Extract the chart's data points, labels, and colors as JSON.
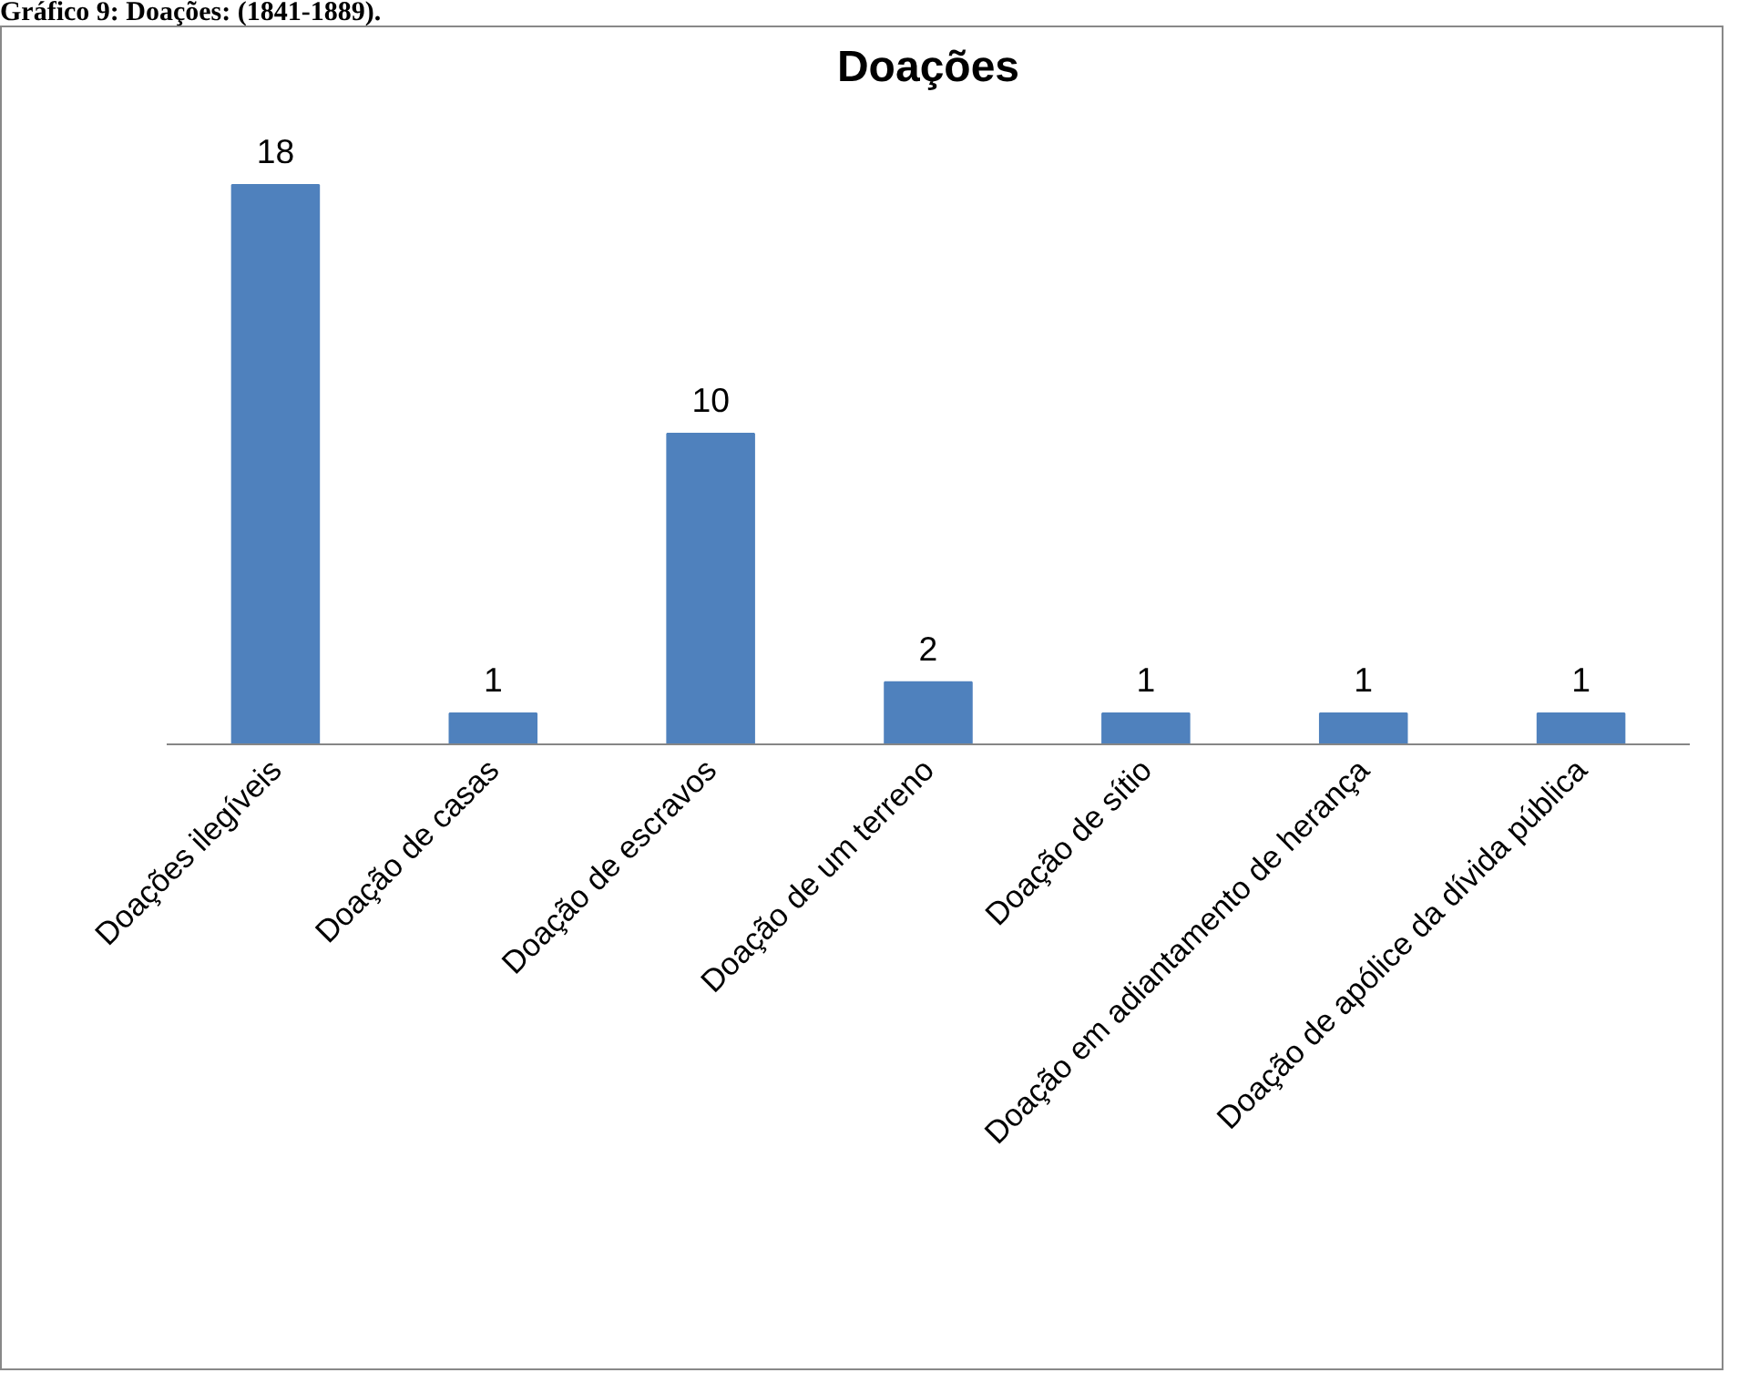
{
  "chart_data": {
    "type": "bar",
    "title": "Doações",
    "annotations": [
      "Gráfico 9: Doações: (1841-1889)."
    ],
    "categories": [
      "Doações ilegíveis",
      "Doação de casas",
      "Doação de escravos",
      "Doação de um terreno",
      "Doação de sítio",
      "Doação em adiantamento de herança",
      "Doação de apólice da dívida pública"
    ],
    "values": [
      18,
      1,
      10,
      2,
      1,
      1,
      1
    ],
    "color": "#4f81bd",
    "data_labels": true,
    "grid": false
  }
}
